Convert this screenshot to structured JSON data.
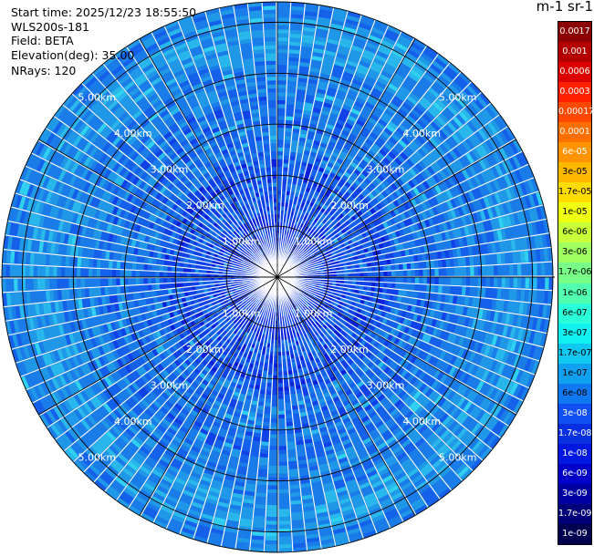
{
  "header": {
    "start_time": "Start time: 2025/12/23 18:55:50",
    "device": "WLS200s-181",
    "field": "Field: BETA",
    "elevation": "Elevation(deg): 35.00",
    "nrays": "NRays: 120"
  },
  "colorbar": {
    "title": "m-1 sr-1",
    "labels": [
      "0.0017",
      "0.001",
      "0.0006",
      "0.0003",
      "0.00017",
      "0.0001",
      "6e-05",
      "3e-05",
      "1.7e-05",
      "1e-05",
      "6e-06",
      "3e-06",
      "1.7e-06",
      "1e-06",
      "6e-07",
      "3e-07",
      "1.7e-07",
      "1e-07",
      "6e-08",
      "3e-08",
      "1.7e-08",
      "1e-08",
      "6e-09",
      "3e-09",
      "1.7e-09",
      "1e-09"
    ],
    "colors": [
      "#8b0000",
      "#b50000",
      "#dd0000",
      "#ff2000",
      "#ff4800",
      "#ff6e00",
      "#ff9400",
      "#ffb800",
      "#ffdc00",
      "#f0ff10",
      "#c8ff38",
      "#a0ff60",
      "#78ff88",
      "#50ffb0",
      "#28ffd8",
      "#10f0f0",
      "#10c8f0",
      "#10a0f0",
      "#1078f0",
      "#1050f0",
      "#0830e0",
      "#0018e0",
      "#0000c8",
      "#0000a0",
      "#000078",
      "#000050"
    ]
  },
  "chart_data": {
    "type": "heatmap",
    "projection": "polar-ppi",
    "field": "BETA",
    "elevation_deg": 35.0,
    "n_rays": 120,
    "range_rings_km": [
      1,
      2,
      3,
      4,
      5
    ],
    "ring_labels": [
      "1.00km",
      "2.00km",
      "3.00km",
      "4.00km",
      "5.00km"
    ],
    "max_range_km": 5.4,
    "dominant_values": [
      "1e-08",
      "1.7e-08",
      "3e-08",
      "6e-08",
      "1e-07",
      "1.7e-07"
    ],
    "structure": "low backscatter (~1e-08 to 3e-08) within ~2 km, rising to ~6e-08 to 1.7e-07 toward the outer ranges, with a brighter band near 4.5-5 km"
  }
}
